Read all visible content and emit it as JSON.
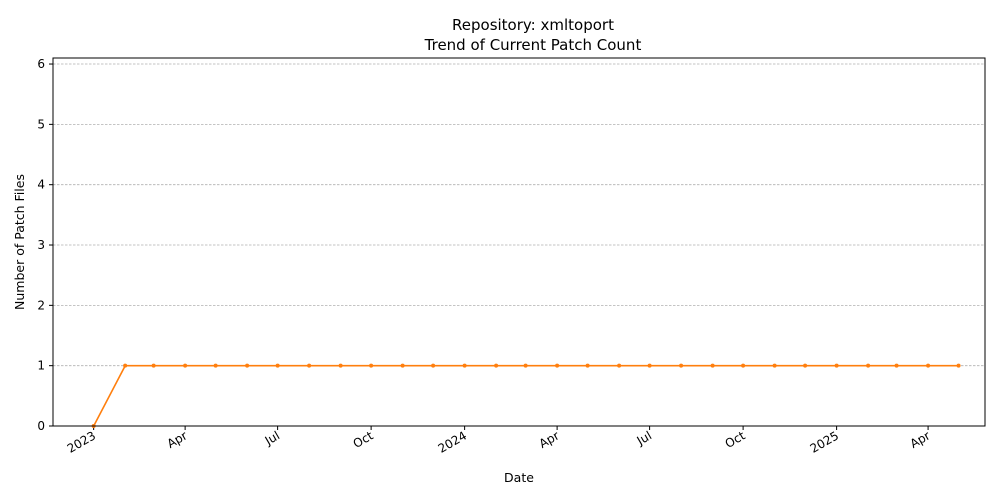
{
  "chart_data": {
    "type": "line",
    "title": "Repository: xmltoport",
    "subtitle": "Trend of Current Patch Count",
    "xlabel": "Date",
    "ylabel": "Number of Patch Files",
    "ylim": [
      0,
      6.1
    ],
    "xlim": [
      "2022-11-22",
      "2025-05-27"
    ],
    "grid": "y",
    "color": "#ff7f0e",
    "y_ticks": [
      0,
      1,
      2,
      3,
      4,
      5,
      6
    ],
    "x_ticks": [
      {
        "date": "2023-01-01",
        "label": "2023"
      },
      {
        "date": "2023-04-01",
        "label": "Apr"
      },
      {
        "date": "2023-07-01",
        "label": "Jul"
      },
      {
        "date": "2023-10-01",
        "label": "Oct"
      },
      {
        "date": "2024-01-01",
        "label": "2024"
      },
      {
        "date": "2024-04-01",
        "label": "Apr"
      },
      {
        "date": "2024-07-01",
        "label": "Jul"
      },
      {
        "date": "2024-10-01",
        "label": "Oct"
      },
      {
        "date": "2025-01-01",
        "label": "2025"
      },
      {
        "date": "2025-04-01",
        "label": "Apr"
      }
    ],
    "x": [
      "2023-01-01",
      "2023-02-01",
      "2023-03-01",
      "2023-04-01",
      "2023-05-01",
      "2023-06-01",
      "2023-07-01",
      "2023-08-01",
      "2023-09-01",
      "2023-10-01",
      "2023-11-01",
      "2023-12-01",
      "2024-01-01",
      "2024-02-01",
      "2024-03-01",
      "2024-04-01",
      "2024-05-01",
      "2024-06-01",
      "2024-07-01",
      "2024-08-01",
      "2024-09-01",
      "2024-10-01",
      "2024-11-01",
      "2024-12-01",
      "2025-01-01",
      "2025-02-01",
      "2025-03-01",
      "2025-04-01",
      "2025-05-01"
    ],
    "values": [
      0,
      1,
      1,
      1,
      1,
      1,
      1,
      1,
      1,
      1,
      1,
      1,
      1,
      1,
      1,
      1,
      1,
      1,
      1,
      1,
      1,
      1,
      1,
      1,
      1,
      1,
      1,
      1,
      1
    ]
  }
}
